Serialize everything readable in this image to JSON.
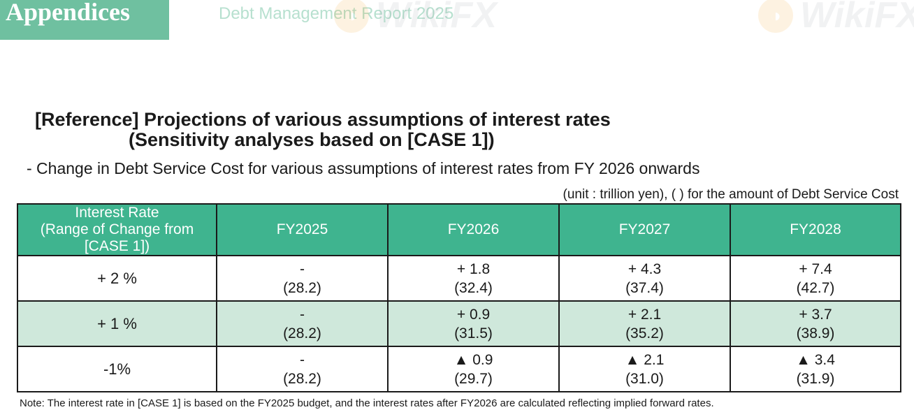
{
  "header": {
    "tab": "Appendices",
    "report": "Debt Management Report 2025"
  },
  "title": {
    "line1": "[Reference] Projections of various assumptions of interest rates",
    "line2": "(Sensitivity analyses based on [CASE 1])"
  },
  "subtitle": "- Change in Debt Service Cost for various assumptions of interest rates from FY 2026 onwards",
  "unit": "(unit : trillion yen), (    ) for the amount of Debt Service Cost",
  "table": {
    "header": {
      "col0_line1": "Interest Rate",
      "col0_line2": "(Range of Change from [CASE 1])",
      "years": [
        "FY2025",
        "FY2026",
        "FY2027",
        "FY2028"
      ]
    },
    "rows": [
      {
        "rate": "+ 2 %",
        "cells": [
          {
            "change": "-",
            "cost": "(28.2)"
          },
          {
            "change": "+ 1.8",
            "cost": "(32.4)"
          },
          {
            "change": "+ 4.3",
            "cost": "(37.4)"
          },
          {
            "change": "+ 7.4",
            "cost": "(42.7)"
          }
        ]
      },
      {
        "rate": "+ 1 %",
        "cells": [
          {
            "change": "-",
            "cost": "(28.2)"
          },
          {
            "change": "+ 0.9",
            "cost": "(31.5)"
          },
          {
            "change": "+ 2.1",
            "cost": "(35.2)"
          },
          {
            "change": "+ 3.7",
            "cost": "(38.9)"
          }
        ]
      },
      {
        "rate": "-1%",
        "cells": [
          {
            "change": "-",
            "cost": "(28.2)"
          },
          {
            "change": "▲ 0.9",
            "cost": "(29.7)"
          },
          {
            "change": "▲ 2.1",
            "cost": "(31.0)"
          },
          {
            "change": "▲ 3.4",
            "cost": "(31.9)"
          }
        ]
      }
    ]
  },
  "note": "Note: The interest rate in [CASE 1] is based on the FY2025 budget, and the interest rates after FY2026 are calculated reflecting implied forward rates.",
  "watermark": {
    "text": "WikiFX",
    "icon": "wikifx-logo-icon"
  },
  "colors": {
    "tab": "#6fc0a0",
    "header": "#3fb48f",
    "shade": "#cfe8db"
  }
}
